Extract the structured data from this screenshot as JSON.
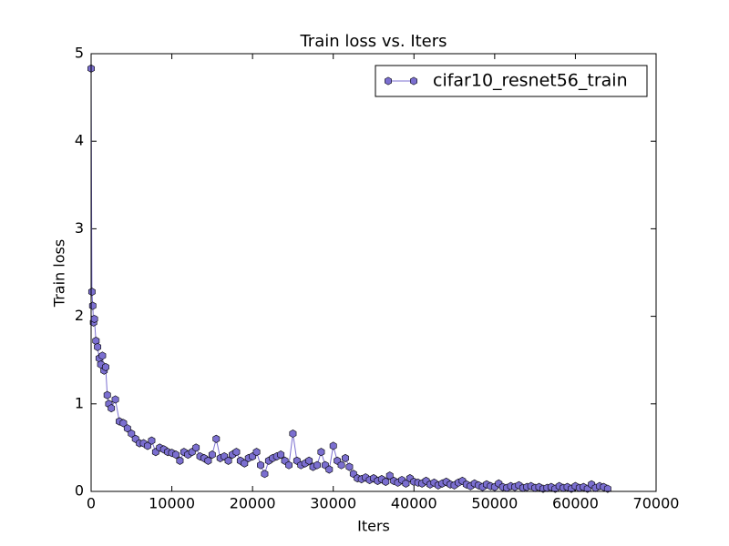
{
  "chart_data": {
    "type": "line",
    "title": "Train loss  vs. Iters",
    "x_label": "Iters",
    "y_label": "Train loss",
    "xlim": [
      0,
      70000
    ],
    "ylim": [
      0,
      5
    ],
    "xticks": [
      0,
      10000,
      20000,
      30000,
      40000,
      50000,
      60000,
      70000
    ],
    "yticks": [
      0,
      1,
      2,
      3,
      4,
      5
    ],
    "grid": false,
    "legend": "upper right",
    "x": [
      0,
      100,
      200,
      300,
      400,
      600,
      800,
      1000,
      1200,
      1400,
      1600,
      1800,
      2000,
      2200,
      2500,
      3000,
      3500,
      4000,
      4500,
      5000,
      5500,
      6000,
      6500,
      7000,
      7500,
      8000,
      8500,
      9000,
      9500,
      10000,
      10500,
      11000,
      11500,
      12000,
      12500,
      13000,
      13500,
      14000,
      14500,
      15000,
      15500,
      16000,
      16500,
      17000,
      17500,
      18000,
      18500,
      19000,
      19500,
      20000,
      20500,
      21000,
      21500,
      22000,
      22500,
      23000,
      23500,
      24000,
      24500,
      25000,
      25500,
      26000,
      26500,
      27000,
      27500,
      28000,
      28500,
      29000,
      29500,
      30000,
      30500,
      31000,
      31500,
      32000,
      32500,
      33000,
      33500,
      34000,
      34500,
      35000,
      35500,
      36000,
      36500,
      37000,
      37500,
      38000,
      38500,
      39000,
      39500,
      40000,
      40500,
      41000,
      41500,
      42000,
      42500,
      43000,
      43500,
      44000,
      44500,
      45000,
      45500,
      46000,
      46500,
      47000,
      47500,
      48000,
      48500,
      49000,
      49500,
      50000,
      50500,
      51000,
      51500,
      52000,
      52500,
      53000,
      53500,
      54000,
      54500,
      55000,
      55500,
      56000,
      56500,
      57000,
      57500,
      58000,
      58500,
      59000,
      59500,
      60000,
      60500,
      61000,
      61500,
      62000,
      62500,
      63000,
      63500,
      64000
    ],
    "series": [
      {
        "name": "cifar10_resnet56_train",
        "color": "#7b6fd0",
        "values": [
          4.83,
          2.28,
          2.12,
          1.93,
          1.97,
          1.72,
          1.65,
          1.52,
          1.45,
          1.55,
          1.38,
          1.42,
          1.1,
          1.0,
          0.95,
          1.05,
          0.8,
          0.78,
          0.72,
          0.66,
          0.6,
          0.55,
          0.55,
          0.52,
          0.58,
          0.45,
          0.5,
          0.48,
          0.45,
          0.44,
          0.42,
          0.35,
          0.45,
          0.42,
          0.45,
          0.5,
          0.4,
          0.38,
          0.35,
          0.42,
          0.6,
          0.38,
          0.4,
          0.35,
          0.42,
          0.45,
          0.35,
          0.32,
          0.38,
          0.4,
          0.45,
          0.3,
          0.2,
          0.35,
          0.38,
          0.4,
          0.42,
          0.35,
          0.3,
          0.66,
          0.35,
          0.3,
          0.32,
          0.35,
          0.28,
          0.3,
          0.45,
          0.3,
          0.25,
          0.52,
          0.35,
          0.3,
          0.38,
          0.28,
          0.2,
          0.15,
          0.14,
          0.16,
          0.13,
          0.15,
          0.12,
          0.14,
          0.11,
          0.18,
          0.12,
          0.1,
          0.13,
          0.09,
          0.15,
          0.11,
          0.1,
          0.09,
          0.12,
          0.08,
          0.1,
          0.07,
          0.09,
          0.11,
          0.08,
          0.07,
          0.1,
          0.12,
          0.08,
          0.06,
          0.09,
          0.07,
          0.05,
          0.08,
          0.06,
          0.05,
          0.09,
          0.05,
          0.04,
          0.06,
          0.05,
          0.07,
          0.04,
          0.05,
          0.06,
          0.04,
          0.05,
          0.03,
          0.04,
          0.05,
          0.03,
          0.06,
          0.04,
          0.05,
          0.03,
          0.06,
          0.04,
          0.05,
          0.03,
          0.08,
          0.04,
          0.06,
          0.05,
          0.03
        ]
      }
    ]
  }
}
